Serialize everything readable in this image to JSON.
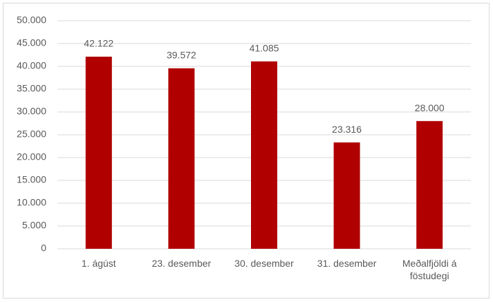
{
  "chart_data": {
    "type": "bar",
    "categories": [
      "1. ágúst",
      "23. desember",
      "30. desember",
      "31. desember",
      "Meðalfjöldi á föstudegi"
    ],
    "values": [
      42122,
      39572,
      41085,
      23316,
      28000
    ],
    "value_labels": [
      "42.122",
      "39.572",
      "41.085",
      "23.316",
      "28.000"
    ],
    "color": "#b00000",
    "ylim": [
      0,
      50000
    ],
    "yticks": [
      0,
      {
        "value": 5000,
        "label": "5.000"
      },
      {
        "value": 10000,
        "label": "10.000"
      },
      {
        "value": 15000,
        "label": "15.000"
      },
      {
        "value": 20000,
        "label": "20.000"
      },
      {
        "value": 25000,
        "label": "25.000"
      },
      {
        "value": 30000,
        "label": "30.000"
      },
      {
        "value": 35000,
        "label": "35.000"
      },
      {
        "value": 40000,
        "label": "40.000"
      },
      {
        "value": 45000,
        "label": "45.000"
      },
      {
        "value": 50000,
        "label": "50.000"
      }
    ],
    "grid": true
  }
}
